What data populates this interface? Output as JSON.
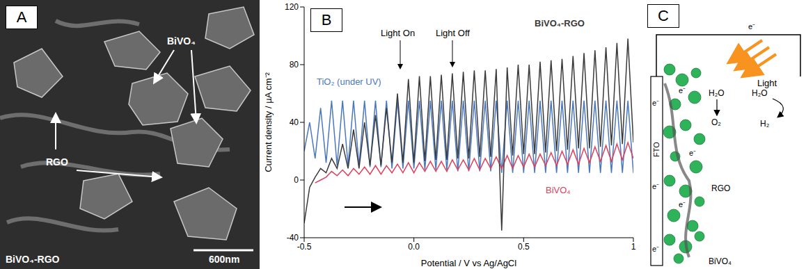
{
  "panel_a": {
    "label": "A",
    "annotations": {
      "bivo4": "BiVO₄",
      "rgo": "RGO",
      "sample": "BiVO₄-RGO"
    },
    "scale_bar": "600nm"
  },
  "panel_b": {
    "label": "B"
  },
  "chart_data": {
    "type": "line",
    "x_label": "Potential / V vs Ag/AgCl",
    "y_label": "Current density / µA cm⁻²",
    "annotations": [
      "Light On",
      "Light Off"
    ],
    "grid": false,
    "xlim": [
      -0.5,
      1
    ],
    "xticks": [
      -0.5,
      {
        "value": 0,
        "label": "0.0"
      },
      0.5,
      1
    ],
    "ylim": [
      -40,
      120
    ],
    "yticks": [
      -40,
      0,
      40,
      80,
      120
    ],
    "x": [
      -0.5,
      -0.475,
      -0.45,
      -0.425,
      -0.4,
      -0.375,
      -0.35,
      -0.325,
      -0.3,
      -0.275,
      -0.25,
      -0.225,
      -0.2,
      -0.175,
      -0.15,
      -0.125,
      -0.1,
      -0.075,
      -0.05,
      -0.025,
      0,
      0.025,
      0.05,
      0.075,
      0.1,
      0.125,
      0.15,
      0.175,
      0.2,
      0.225,
      0.25,
      0.275,
      0.3,
      0.325,
      0.35,
      0.375,
      0.4,
      0.425,
      0.45,
      0.475,
      0.5,
      0.525,
      0.55,
      0.575,
      0.6,
      0.625,
      0.65,
      0.675,
      0.7,
      0.725,
      0.75,
      0.775,
      0.8,
      0.825,
      0.85,
      0.875,
      0.9,
      0.925,
      0.95,
      0.975,
      1
    ],
    "series": [
      {
        "name": "TiO₂ (under UV)",
        "color": "#4a78c0",
        "values": [
          20,
          40,
          15,
          50,
          12,
          55,
          10,
          55,
          10,
          55,
          10,
          55,
          9,
          55,
          9,
          55,
          8,
          55,
          8,
          55,
          8,
          55,
          7,
          55,
          7,
          55,
          7,
          55,
          6,
          55,
          6,
          55,
          6,
          55,
          6,
          55,
          5,
          55,
          5,
          55,
          5,
          55,
          5,
          55,
          5,
          55,
          5,
          55,
          5,
          55,
          5,
          55,
          5,
          55,
          5,
          55,
          5,
          55,
          5,
          55,
          5
        ]
      },
      {
        "name": "BiVO₄",
        "color": "#e0405a",
        "values": [
          null,
          null,
          -2,
          0,
          2,
          6,
          3,
          7,
          3,
          8,
          4,
          9,
          4,
          10,
          4,
          10,
          5,
          11,
          5,
          12,
          5,
          12,
          6,
          13,
          6,
          13,
          6,
          14,
          7,
          14,
          7,
          15,
          7,
          15,
          8,
          16,
          8,
          17,
          8,
          17,
          9,
          18,
          9,
          18,
          10,
          19,
          10,
          20,
          11,
          21,
          11,
          22,
          12,
          23,
          13,
          24,
          13,
          25,
          14,
          26,
          15
        ]
      },
      {
        "name": "BiVO₄-RGO",
        "color": "#3a3a3a",
        "values": [
          -30,
          -5,
          2,
          8,
          5,
          15,
          8,
          25,
          8,
          35,
          8,
          40,
          10,
          45,
          10,
          50,
          12,
          60,
          12,
          70,
          12,
          72,
          13,
          72,
          14,
          73,
          14,
          74,
          15,
          75,
          15,
          76,
          16,
          76,
          16,
          77,
          -35,
          78,
          17,
          80,
          18,
          80,
          18,
          82,
          19,
          83,
          20,
          84,
          21,
          86,
          22,
          88,
          22,
          90,
          23,
          92,
          24,
          95,
          25,
          98,
          26
        ]
      }
    ]
  },
  "panel_c": {
    "label": "C",
    "electrode": "FTO",
    "light": "Light",
    "electron_labels": [
      "e⁻",
      "e⁻",
      "e⁻",
      "e⁻",
      "e⁻",
      "e⁻",
      "e⁻"
    ],
    "water_left": "H₂O",
    "oxygen": "O₂",
    "water_right": "H₂O",
    "hydrogen": "H₂",
    "rgo": "RGO",
    "bivo4": "BiVO₄"
  }
}
